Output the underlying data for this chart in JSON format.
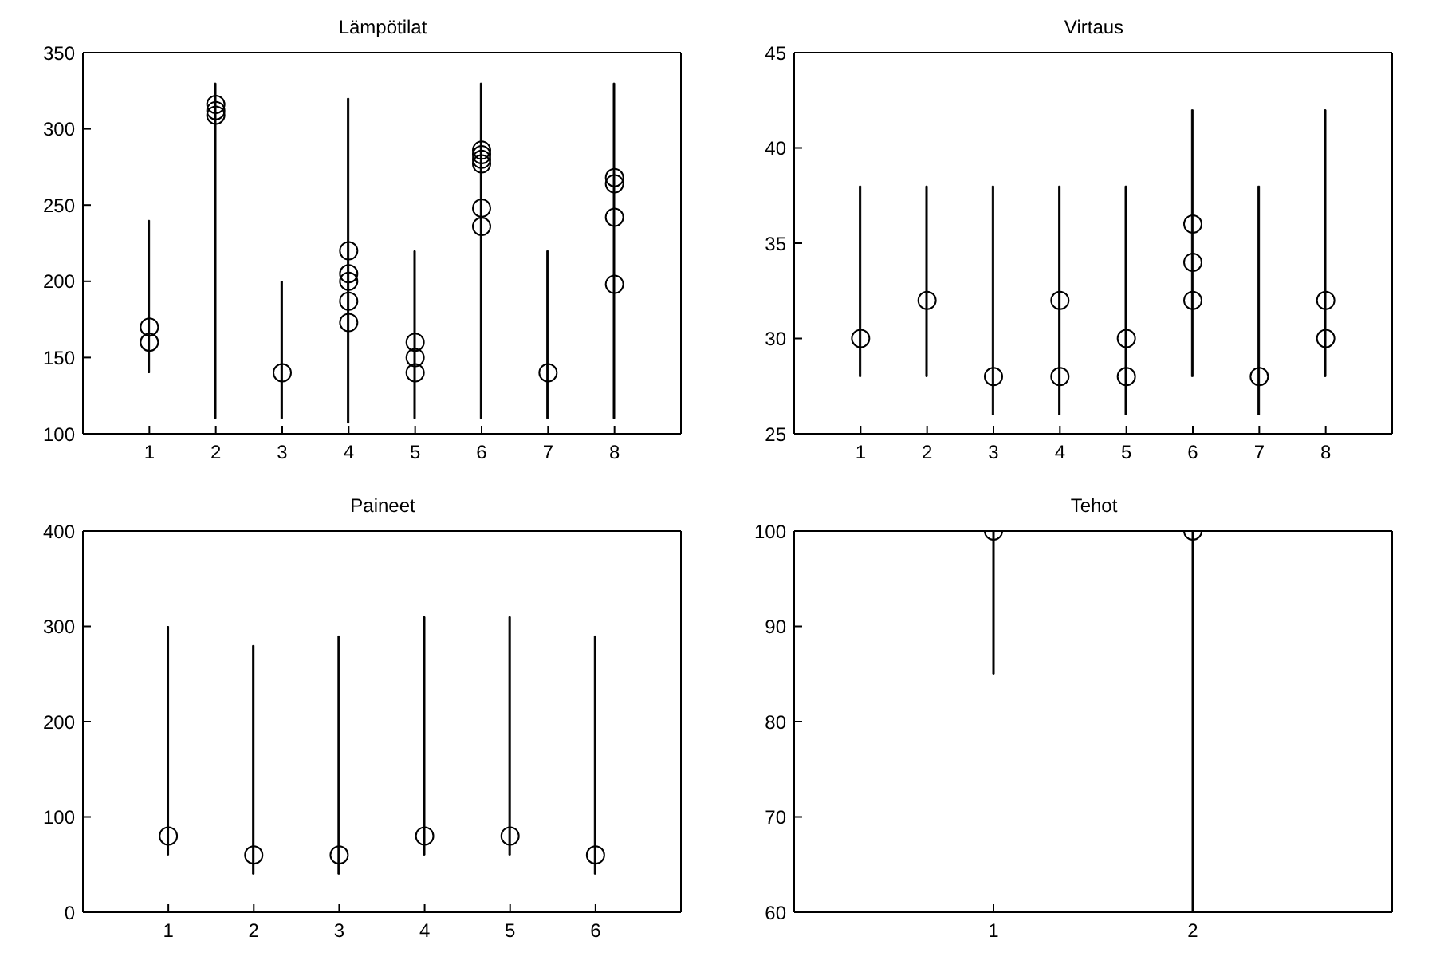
{
  "chart_data": [
    {
      "type": "scatter",
      "title": "Lämpötilat",
      "marker": "circle",
      "xlim": [
        0,
        9
      ],
      "xticks": [
        1,
        2,
        3,
        4,
        5,
        6,
        7,
        8
      ],
      "ylim": [
        100,
        350
      ],
      "yticks": [
        100,
        150,
        200,
        250,
        300,
        350
      ],
      "series": [
        {
          "type": "bar",
          "color": "#000000",
          "x": [
            1,
            2,
            3,
            4,
            5,
            6,
            7,
            8
          ],
          "base": [
            140,
            110,
            110,
            107,
            110,
            110,
            110,
            110
          ],
          "values": [
            100,
            220,
            90,
            213,
            110,
            220,
            110,
            220
          ]
        },
        {
          "type": "scatter",
          "color": "#000000",
          "x": [
            1,
            1,
            2,
            2,
            2,
            3,
            4,
            4,
            4,
            4,
            4,
            5,
            5,
            5,
            6,
            6,
            6,
            6,
            6,
            6,
            7,
            8,
            8,
            8,
            8
          ],
          "values": [
            170,
            160,
            316,
            312,
            309,
            140,
            220,
            205,
            200,
            187,
            173,
            160,
            150,
            140,
            286,
            283,
            280,
            277,
            248,
            236,
            140,
            268,
            264,
            242,
            198
          ]
        }
      ]
    },
    {
      "type": "scatter",
      "title": "Virtaus",
      "marker": "circle",
      "xlim": [
        0,
        9
      ],
      "xticks": [
        1,
        2,
        3,
        4,
        5,
        6,
        7,
        8
      ],
      "ylim": [
        25,
        45
      ],
      "yticks": [
        25,
        30,
        35,
        40,
        45
      ],
      "series": [
        {
          "type": "bar",
          "color": "#000000",
          "x": [
            1,
            2,
            3,
            4,
            5,
            6,
            7,
            8
          ],
          "base": [
            28,
            28,
            26,
            26,
            26,
            28,
            26,
            28
          ],
          "values": [
            10,
            10,
            12,
            12,
            12,
            14,
            12,
            14
          ]
        },
        {
          "type": "scatter",
          "color": "#000000",
          "x": [
            1,
            2,
            3,
            4,
            4,
            5,
            5,
            6,
            6,
            6,
            7,
            8,
            8
          ],
          "values": [
            30,
            32,
            28,
            32,
            28,
            30,
            28,
            36,
            34,
            32,
            28,
            32,
            30
          ]
        }
      ]
    },
    {
      "type": "scatter",
      "title": "Paineet",
      "marker": "circle",
      "xlim": [
        0,
        7
      ],
      "xticks": [
        1,
        2,
        3,
        4,
        5,
        6
      ],
      "ylim": [
        0,
        400
      ],
      "yticks": [
        0,
        100,
        200,
        300,
        400
      ],
      "series": [
        {
          "type": "bar",
          "color": "#000000",
          "x": [
            1,
            2,
            3,
            4,
            5,
            6
          ],
          "base": [
            60,
            40,
            40,
            60,
            60,
            40
          ],
          "values": [
            240,
            240,
            250,
            250,
            250,
            250
          ]
        },
        {
          "type": "scatter",
          "color": "#000000",
          "x": [
            1,
            2,
            3,
            4,
            5,
            6
          ],
          "values": [
            80,
            60,
            60,
            80,
            80,
            60
          ]
        }
      ]
    },
    {
      "type": "scatter",
      "title": "Tehot",
      "marker": "circle",
      "xlim": [
        0,
        3
      ],
      "xticks": [
        1,
        2
      ],
      "ylim": [
        60,
        100
      ],
      "yticks": [
        60,
        70,
        80,
        90,
        100
      ],
      "series": [
        {
          "type": "bar",
          "color": "#000000",
          "x": [
            1,
            2
          ],
          "base": [
            85,
            60
          ],
          "values": [
            15,
            40
          ]
        },
        {
          "type": "scatter",
          "color": "#000000",
          "x": [
            1,
            2
          ],
          "values": [
            100,
            100
          ]
        }
      ]
    }
  ]
}
